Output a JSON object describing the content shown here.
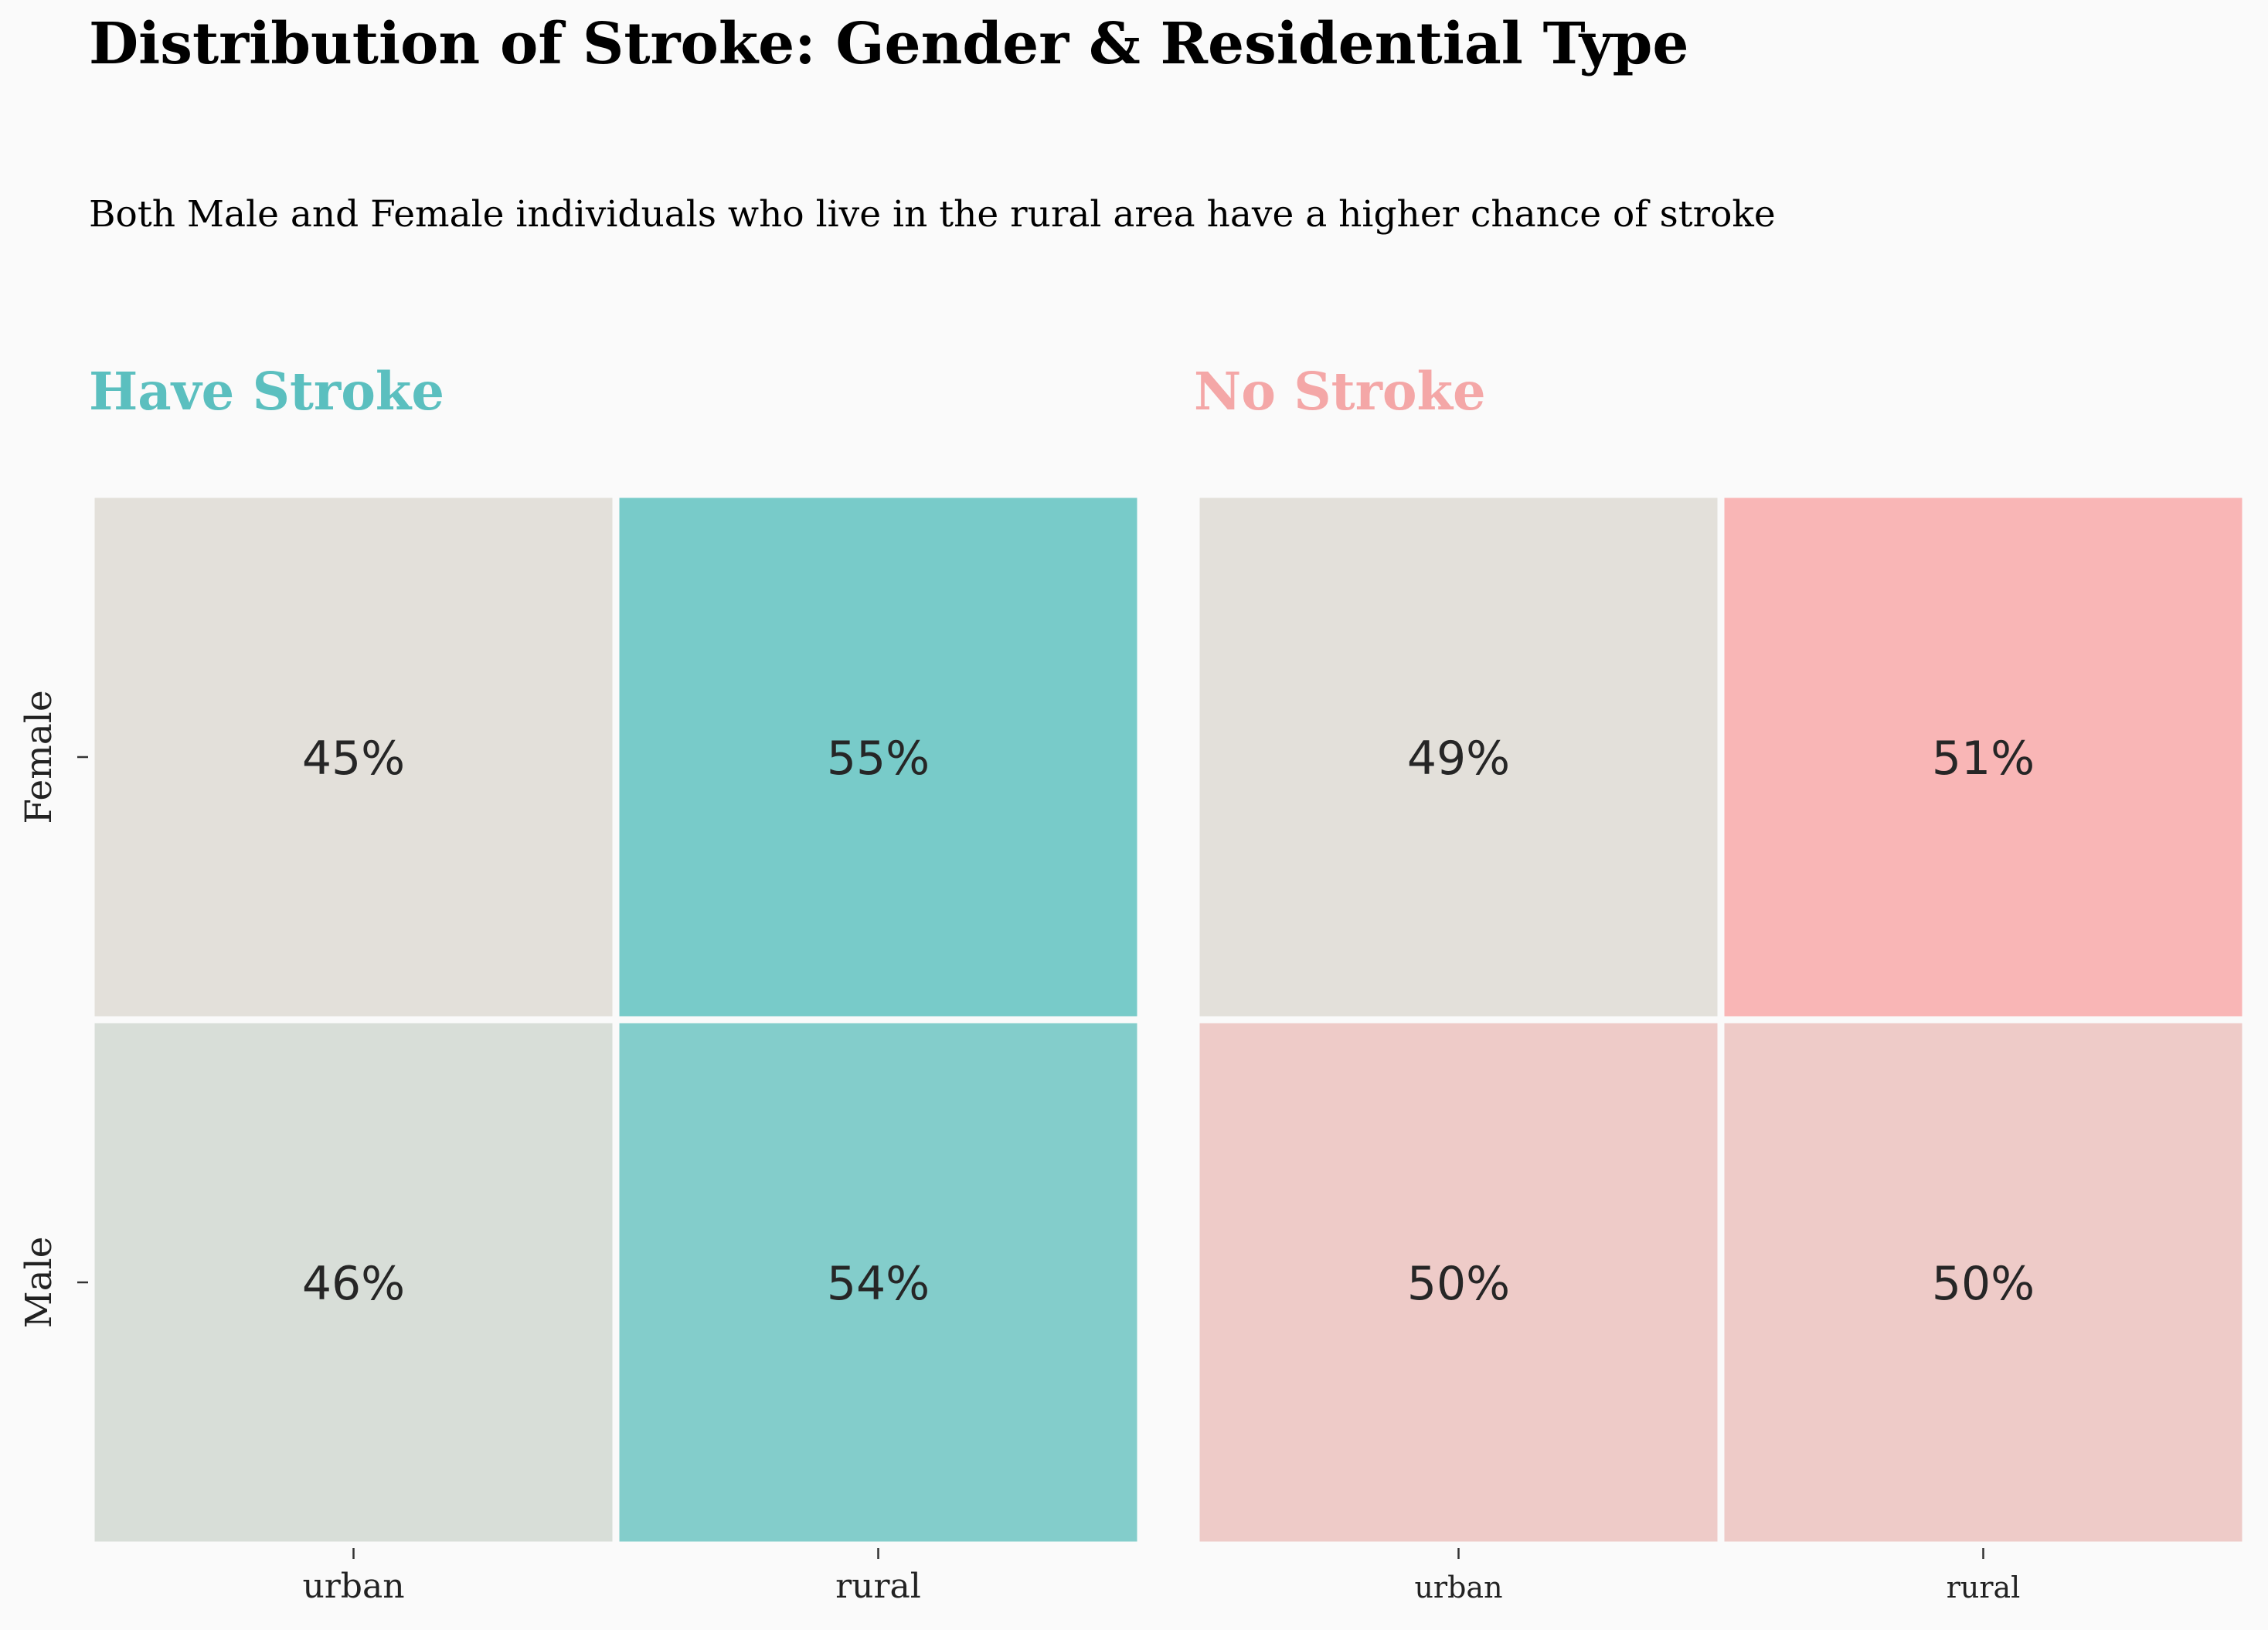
{
  "figure": {
    "title": "Distribution of Stroke: Gender & Residential Type",
    "subtitle": "Both Male and Female individuals who live in the rural area have a higher chance of stroke"
  },
  "chart_data": [
    {
      "type": "heatmap",
      "title": "Have Stroke",
      "title_color": "#5bbfbf",
      "rows": [
        "Female",
        "Male"
      ],
      "columns": [
        "urban",
        "rural"
      ],
      "values": [
        [
          45,
          55
        ],
        [
          46,
          54
        ]
      ],
      "value_format": "percent",
      "colormap": [
        "#e3e0da",
        "#78cbc9"
      ],
      "grid": false,
      "legend": "none"
    },
    {
      "type": "heatmap",
      "title": "No Stroke",
      "title_color": "#f4a7a7",
      "rows": [
        "Female",
        "Male"
      ],
      "columns": [
        "urban",
        "rural"
      ],
      "values": [
        [
          49,
          51
        ],
        [
          50,
          50
        ]
      ],
      "value_format": "percent",
      "colormap": [
        "#e3e0da",
        "#f9b6b6"
      ],
      "grid": false,
      "legend": "none"
    }
  ]
}
